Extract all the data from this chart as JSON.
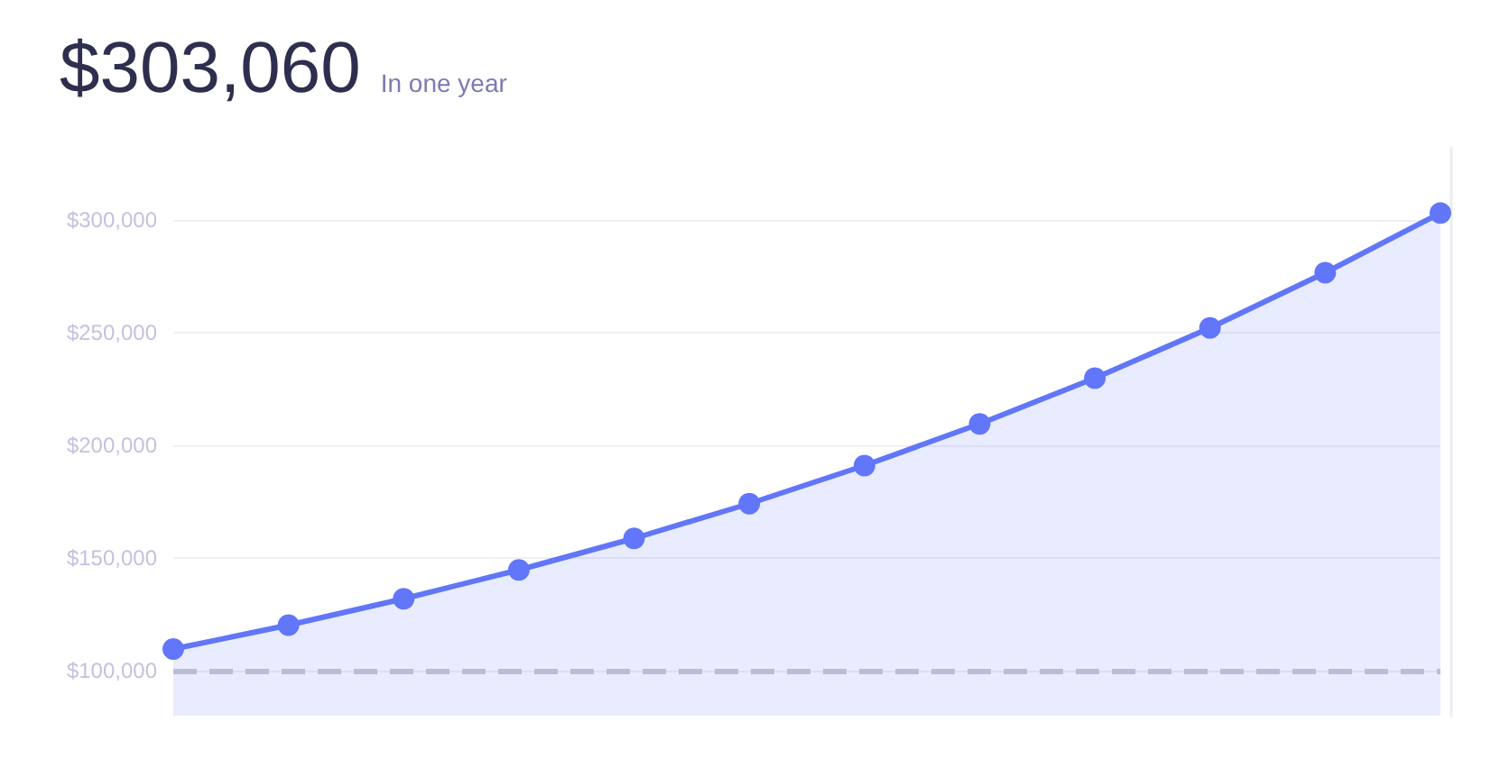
{
  "chart_data": {
    "type": "area",
    "title": "$303,060",
    "subtitle": "In one year",
    "categories": [
      null,
      null,
      null,
      null,
      null,
      null,
      null,
      null,
      null,
      null,
      null,
      null
    ],
    "values": [
      109600,
      120200,
      131900,
      144700,
      158700,
      174100,
      191000,
      209500,
      229800,
      252100,
      276600,
      303060
    ],
    "color": "#6176f8",
    "ylim": [
      80000,
      332000
    ],
    "yticks": [
      {
        "value": 100000,
        "label": "$100,000"
      },
      {
        "value": 150000,
        "label": "$150,000"
      },
      {
        "value": 200000,
        "label": "$200,000"
      },
      {
        "value": 250000,
        "label": "$250,000"
      },
      {
        "value": 300000,
        "label": "$300,000"
      }
    ],
    "grid": "y",
    "tick_labels": "y",
    "marker": "circle",
    "line_style": "solid",
    "ref_lines": [
      {
        "axis": "y",
        "value": 100000,
        "color": "#bcbcd8",
        "line_style": "dashed"
      }
    ]
  }
}
